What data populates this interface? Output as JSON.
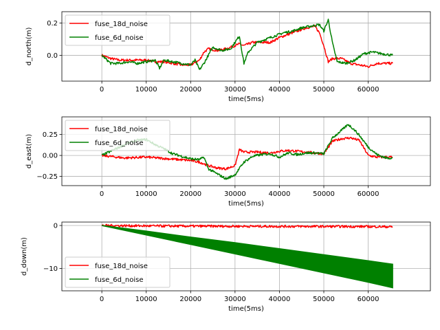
{
  "colors": {
    "fuse_18d_noise": "#ff0000",
    "fuse_6d_noise": "#008000"
  },
  "chart_data": [
    {
      "type": "line",
      "xlabel": "time(5ms)",
      "ylabel": "d_north(m)",
      "xlim": [
        -9000,
        74000
      ],
      "ylim": [
        -0.16,
        0.27
      ],
      "xticks": [
        0,
        10000,
        20000,
        30000,
        40000,
        50000,
        60000
      ],
      "xtick_labels": [
        "0",
        "10000",
        "20000",
        "30000",
        "40000",
        "50000",
        "60000"
      ],
      "yticks": [
        0.0,
        0.2
      ],
      "ytick_labels": [
        "0.0",
        "0.2"
      ],
      "grid": true,
      "legend": "upper left",
      "series": [
        {
          "name": "fuse_18d_noise",
          "color": "#ff0000",
          "x": [
            0,
            2000,
            4000,
            8000,
            10000,
            12000,
            14000,
            16000,
            18000,
            20000,
            22000,
            23000,
            24000,
            26000,
            28000,
            30000,
            31000,
            32000,
            34000,
            36000,
            38000,
            40000,
            42000,
            44000,
            46000,
            48000,
            49000,
            50000,
            51000,
            52000,
            54000,
            56000,
            58000,
            60000,
            62000,
            64000,
            65500
          ],
          "y": [
            0.0,
            -0.02,
            -0.03,
            -0.03,
            -0.03,
            -0.04,
            -0.04,
            -0.05,
            -0.06,
            -0.06,
            -0.03,
            0.02,
            0.04,
            0.03,
            0.04,
            0.06,
            0.07,
            0.06,
            0.08,
            0.08,
            0.08,
            0.11,
            0.13,
            0.15,
            0.17,
            0.18,
            0.14,
            0.06,
            -0.04,
            -0.02,
            -0.02,
            -0.05,
            -0.06,
            -0.07,
            -0.05,
            -0.05,
            -0.05
          ]
        },
        {
          "name": "fuse_6d_noise",
          "color": "#008000",
          "x": [
            0,
            2000,
            4000,
            6000,
            8000,
            10000,
            12000,
            13000,
            14000,
            16000,
            18000,
            20000,
            21000,
            22000,
            23000,
            25000,
            27000,
            29000,
            31000,
            32000,
            33000,
            35000,
            37000,
            39000,
            41000,
            43000,
            45000,
            47000,
            49000,
            50000,
            51000,
            52000,
            53000,
            55000,
            57000,
            59000,
            61000,
            63000,
            65500
          ],
          "y": [
            0.0,
            -0.05,
            -0.05,
            -0.04,
            -0.05,
            -0.04,
            -0.03,
            -0.08,
            -0.03,
            -0.04,
            -0.05,
            -0.06,
            -0.03,
            -0.09,
            -0.05,
            0.05,
            0.03,
            0.04,
            0.12,
            -0.05,
            0.02,
            0.08,
            0.1,
            0.12,
            0.14,
            0.15,
            0.17,
            0.18,
            0.19,
            0.15,
            0.22,
            0.07,
            -0.04,
            -0.05,
            -0.03,
            0.01,
            0.02,
            0.01,
            0.0
          ]
        }
      ]
    },
    {
      "type": "line",
      "xlabel": "time(5ms)",
      "ylabel": "d_east(m)",
      "xlim": [
        -9000,
        74000
      ],
      "ylim": [
        -0.36,
        0.46
      ],
      "xticks": [
        0,
        10000,
        20000,
        30000,
        40000,
        50000,
        60000
      ],
      "xtick_labels": [
        "0",
        "10000",
        "20000",
        "30000",
        "40000",
        "50000",
        "60000"
      ],
      "yticks": [
        -0.25,
        0.0,
        0.25
      ],
      "ytick_labels": [
        "−0.25",
        "0.00",
        "0.25"
      ],
      "grid": true,
      "legend": "upper left",
      "series": [
        {
          "name": "fuse_18d_noise",
          "color": "#ff0000",
          "x": [
            0,
            5000,
            10000,
            15000,
            20000,
            22000,
            24000,
            26000,
            28000,
            30000,
            31000,
            32000,
            35000,
            38000,
            40000,
            42000,
            44000,
            46000,
            48000,
            50000,
            52000,
            54000,
            56000,
            58000,
            60000,
            62000,
            65500
          ],
          "y": [
            0.0,
            -0.03,
            -0.02,
            -0.04,
            -0.06,
            -0.08,
            -0.12,
            -0.15,
            -0.16,
            -0.12,
            0.07,
            0.04,
            0.04,
            0.03,
            0.05,
            0.06,
            0.05,
            0.04,
            0.03,
            0.02,
            0.17,
            0.2,
            0.21,
            0.18,
            0.0,
            -0.02,
            -0.02
          ]
        },
        {
          "name": "fuse_6d_noise",
          "color": "#008000",
          "x": [
            0,
            2000,
            4000,
            6000,
            8000,
            10000,
            12000,
            14000,
            16000,
            18000,
            20000,
            22000,
            23000,
            24000,
            26000,
            28000,
            30000,
            32000,
            34000,
            36000,
            38000,
            40000,
            42000,
            44000,
            46000,
            48000,
            50000,
            52000,
            54000,
            55500,
            57000,
            58000,
            60000,
            62000,
            64000,
            65500
          ],
          "y": [
            0.0,
            0.05,
            0.1,
            0.15,
            0.18,
            0.19,
            0.13,
            0.08,
            0.02,
            -0.01,
            -0.04,
            -0.05,
            -0.02,
            -0.16,
            -0.22,
            -0.28,
            -0.23,
            -0.08,
            -0.01,
            0.01,
            0.02,
            -0.02,
            0.03,
            0.01,
            0.03,
            0.03,
            0.02,
            0.21,
            0.3,
            0.37,
            0.3,
            0.24,
            0.1,
            0.01,
            -0.03,
            -0.03
          ]
        }
      ]
    },
    {
      "type": "line",
      "xlabel": "time(5ms)",
      "ylabel": "d_down(m)",
      "xlim": [
        -9000,
        74000
      ],
      "ylim": [
        -15.2,
        0.8
      ],
      "xticks": [
        0,
        10000,
        20000,
        30000,
        40000,
        50000,
        60000
      ],
      "xtick_labels": [
        "0",
        "10000",
        "20000",
        "30000",
        "40000",
        "50000",
        "60000"
      ],
      "yticks": [
        -10,
        0
      ],
      "ytick_labels": [
        "−10",
        "0"
      ],
      "grid": true,
      "legend": "lower left",
      "series": [
        {
          "name": "fuse_18d_noise",
          "color": "#ff0000",
          "x": [
            0,
            10000,
            20000,
            30000,
            40000,
            50000,
            60000,
            65500
          ],
          "y": [
            0.0,
            -0.1,
            -0.15,
            -0.18,
            -0.2,
            -0.22,
            -0.25,
            -0.3
          ]
        },
        {
          "name": "fuse_6d_noise",
          "color": "#008000",
          "band": true,
          "x": [
            0,
            10000,
            20000,
            30000,
            40000,
            50000,
            60000,
            65500
          ],
          "y_upper": [
            0.0,
            -1.3,
            -2.7,
            -4.0,
            -5.4,
            -6.8,
            -8.2,
            -9.0
          ],
          "y_lower": [
            0.0,
            -2.2,
            -4.4,
            -6.6,
            -8.8,
            -11.0,
            -13.2,
            -14.5
          ]
        }
      ]
    }
  ]
}
